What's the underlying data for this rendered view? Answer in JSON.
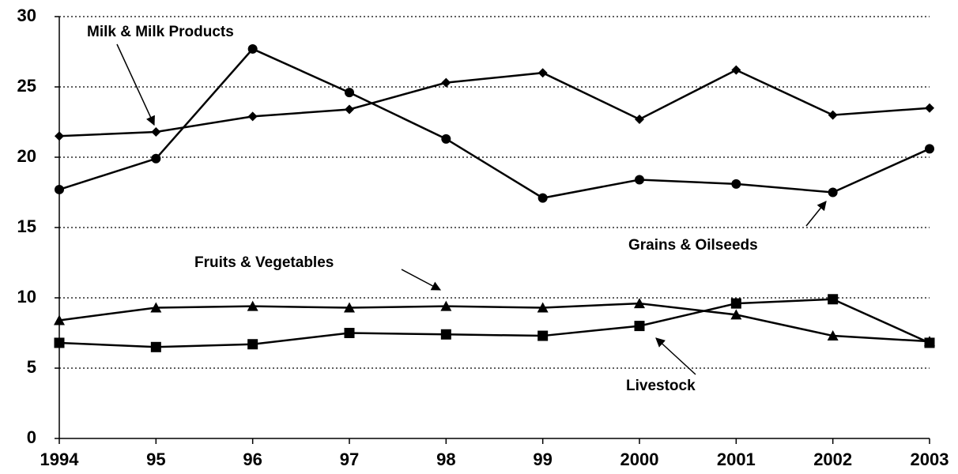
{
  "chart_data": {
    "type": "line",
    "categories": [
      "1994",
      "95",
      "96",
      "97",
      "98",
      "99",
      "2000",
      "2001",
      "2002",
      "2003"
    ],
    "series": [
      {
        "name": "Milk & Milk Products",
        "color": "#000000",
        "marker": "diamond",
        "values": [
          21.5,
          21.8,
          22.9,
          23.4,
          25.3,
          26.0,
          22.7,
          26.2,
          23.0,
          23.5
        ]
      },
      {
        "name": "Grains & Oilseeds",
        "color": "#000000",
        "marker": "circle",
        "values": [
          17.7,
          19.9,
          27.7,
          24.6,
          21.3,
          17.1,
          18.4,
          18.1,
          17.5,
          20.6
        ]
      },
      {
        "name": "Fruits & Vegetables",
        "color": "#000000",
        "marker": "triangle",
        "values": [
          8.4,
          9.3,
          9.4,
          9.3,
          9.4,
          9.3,
          9.6,
          8.8,
          7.3,
          6.9
        ]
      },
      {
        "name": "Livestock",
        "color": "#000000",
        "marker": "square",
        "values": [
          6.8,
          6.5,
          6.7,
          7.5,
          7.4,
          7.3,
          8.0,
          9.6,
          9.9,
          6.8
        ]
      }
    ],
    "ylim": [
      0,
      30
    ],
    "yticks": [
      0,
      5,
      10,
      15,
      20,
      25,
      30
    ],
    "grid": true
  }
}
